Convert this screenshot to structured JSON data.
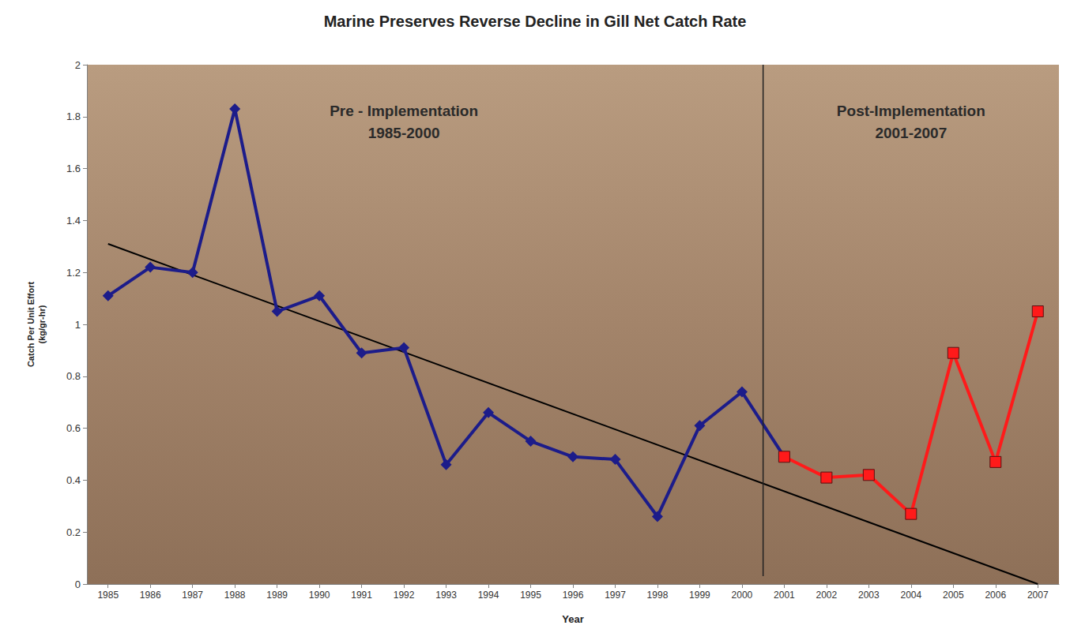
{
  "chart_data": {
    "type": "line",
    "title": "Marine Preserves Reverse Decline in Gill Net Catch Rate",
    "x_label": "Year",
    "y_label": "Catch Per Unit Effort\n(kg/gr-hr)",
    "categories": [
      "1985",
      "1986",
      "1987",
      "1988",
      "1989",
      "1990",
      "1991",
      "1992",
      "1993",
      "1994",
      "1995",
      "1996",
      "1997",
      "1998",
      "1999",
      "2000",
      "2001",
      "2002",
      "2003",
      "2004",
      "2005",
      "2006",
      "2007"
    ],
    "series": [
      {
        "color": "#1c1c8a",
        "marker": "diamond",
        "line_style": "solid",
        "values": [
          1.11,
          1.22,
          1.2,
          1.83,
          1.05,
          1.11,
          0.89,
          0.91,
          0.46,
          0.66,
          0.55,
          0.49,
          0.48,
          0.26,
          0.61,
          0.74,
          0.49,
          null,
          null,
          null,
          null,
          null,
          null
        ]
      },
      {
        "color": "#ff1a1a",
        "marker": "square",
        "line_style": "solid",
        "values": [
          null,
          null,
          null,
          null,
          null,
          null,
          null,
          null,
          null,
          null,
          null,
          null,
          null,
          null,
          null,
          null,
          0.49,
          0.41,
          0.42,
          0.27,
          0.89,
          0.47,
          1.05
        ]
      },
      {
        "type": "trendline",
        "color": "#000000",
        "marker": "none",
        "line_style": "solid",
        "x": [
          "1985",
          "2007"
        ],
        "values": [
          1.31,
          0
        ]
      }
    ],
    "annotations": [
      {
        "text": "Pre - Implementation\n1985-2000",
        "x": "1992",
        "y": 1.78
      },
      {
        "text": "Post-Implementation\n2001-2007",
        "x": "2004",
        "y": 1.78
      }
    ],
    "ylim": [
      0,
      2
    ],
    "yticks": [
      0,
      0.2,
      0.4,
      0.6,
      0.8,
      1,
      1.2,
      1.4,
      1.6,
      1.8,
      2
    ],
    "grid": false
  }
}
